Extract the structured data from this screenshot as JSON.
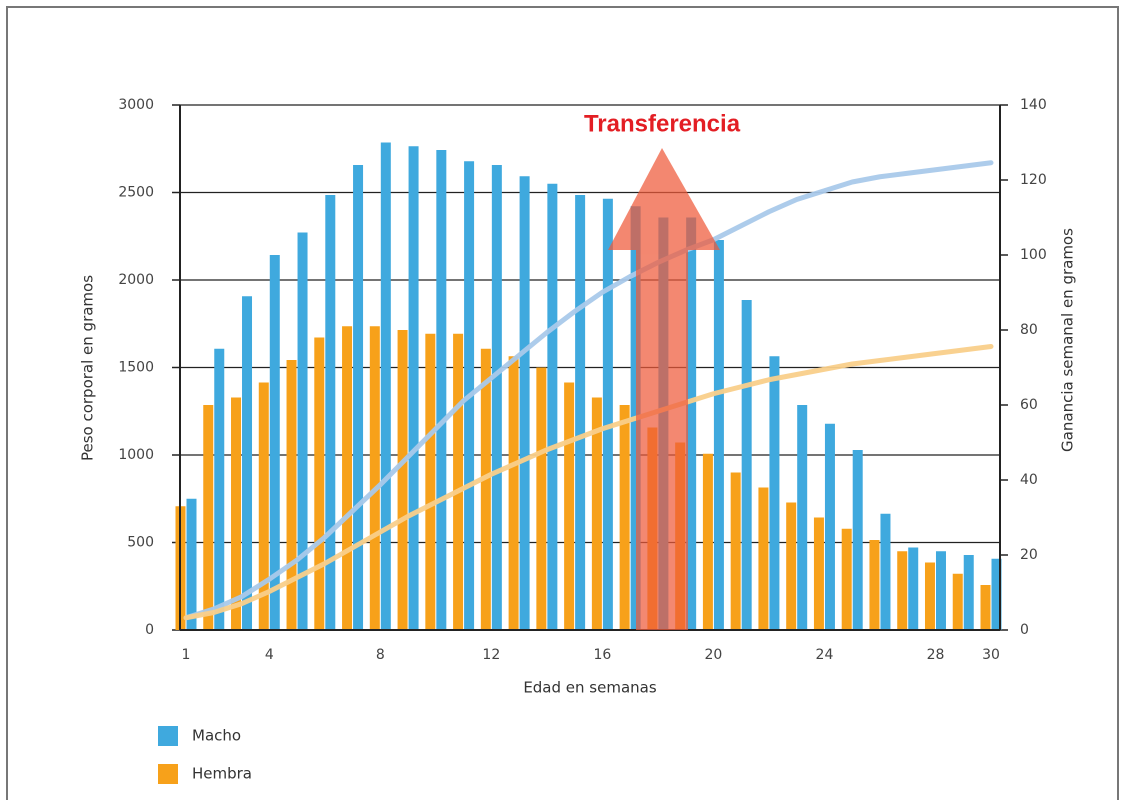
{
  "chart_data": {
    "type": "bar",
    "annotation": "Transferencia",
    "x_label": "Edad en semanas",
    "y_label": "Peso corporal en gramos",
    "y2_label": "Ganancia semanal en gramos",
    "categories": [
      "1",
      null,
      null,
      "4",
      null,
      null,
      null,
      "8",
      null,
      null,
      null,
      "12",
      null,
      null,
      null,
      "16",
      null,
      null,
      null,
      "20",
      null,
      null,
      null,
      "24",
      null,
      null,
      null,
      "28",
      null,
      "30"
    ],
    "ylim": [
      0,
      3000
    ],
    "yticks": [
      0,
      500,
      1000,
      1500,
      2000,
      2500,
      3000
    ],
    "y2lim": [
      0,
      140
    ],
    "y2ticks": [
      0,
      20,
      40,
      60,
      80,
      100,
      120,
      140
    ],
    "grid": true,
    "series": [
      {
        "name": "Macho",
        "color": "#3fa9de",
        "axis": "y2",
        "values": [
          35,
          75,
          89,
          100,
          106,
          116,
          124,
          130,
          129,
          128,
          125,
          124,
          121,
          119,
          116,
          115,
          113,
          110,
          110,
          104,
          88,
          73,
          60,
          55,
          48,
          31,
          22,
          21,
          20,
          19
        ]
      },
      {
        "name": "Hembra",
        "color": "#f7a11a",
        "axis": "y2",
        "values": [
          33,
          60,
          62,
          66,
          72,
          78,
          81,
          81,
          80,
          79,
          79,
          75,
          73,
          70,
          66,
          62,
          60,
          54,
          50,
          47,
          42,
          38,
          34,
          30,
          27,
          24,
          21,
          18,
          15,
          12
        ]
      },
      {
        "type": "line",
        "color": "#a9c9ea",
        "values": [
          70,
          120,
          190,
          290,
          400,
          530,
          680,
          830,
          990,
          1150,
          1310,
          1440,
          1570,
          1700,
          1820,
          1930,
          2020,
          2100,
          2170,
          2230,
          2310,
          2390,
          2460,
          2510,
          2560,
          2590,
          2610,
          2630,
          2650,
          2670
        ]
      },
      {
        "type": "line",
        "color": "#f9cf8a",
        "values": [
          70,
          100,
          150,
          220,
          300,
          380,
          470,
          560,
          650,
          730,
          810,
          890,
          960,
          1030,
          1090,
          1150,
          1200,
          1250,
          1300,
          1350,
          1390,
          1430,
          1460,
          1490,
          1520,
          1540,
          1560,
          1580,
          1600,
          1620
        ]
      }
    ]
  }
}
